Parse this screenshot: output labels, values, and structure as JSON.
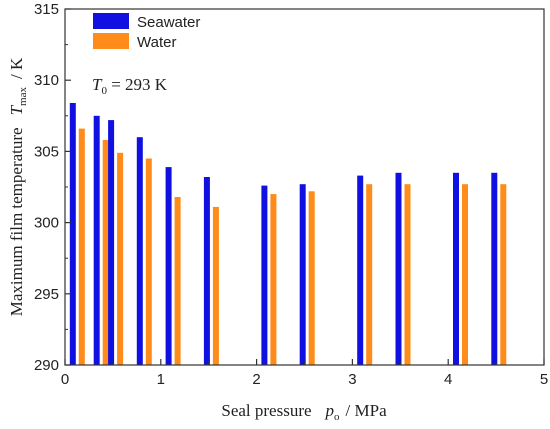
{
  "chart_data": {
    "type": "bar",
    "x": [
      0.05,
      0.3,
      0.45,
      0.75,
      1.05,
      1.45,
      2.05,
      2.45,
      3.05,
      3.45,
      4.05,
      4.45
    ],
    "series": [
      {
        "name": "Seawater",
        "color": "#1010e0",
        "values": [
          308.4,
          307.5,
          307.2,
          306.0,
          303.9,
          303.2,
          302.6,
          302.7,
          303.3,
          303.5,
          303.5,
          303.5
        ]
      },
      {
        "name": "Water",
        "color": "#ff8c1a",
        "values": [
          306.6,
          305.8,
          304.9,
          304.5,
          301.8,
          301.1,
          302.0,
          302.2,
          302.7,
          302.7,
          302.7,
          302.7
        ]
      }
    ],
    "xlim": [
      0,
      5
    ],
    "ylim": [
      290,
      315
    ],
    "xticks": [
      "0",
      "1",
      "2",
      "3",
      "4",
      "5"
    ],
    "yticks": [
      "290",
      "295",
      "300",
      "305",
      "310",
      "315"
    ],
    "xlabel": {
      "text": "Seal pressure",
      "symbol": "p",
      "subscript": "o",
      "unit": "/ MPa"
    },
    "ylabel": {
      "text": "Maximum film temperature",
      "symbol": "T",
      "subscript": "max",
      "unit": "/ K"
    },
    "annotation": {
      "symbol": "T",
      "subscript": "0",
      "text": " = 293 K"
    },
    "legend_position": "top-left",
    "grid": false
  }
}
